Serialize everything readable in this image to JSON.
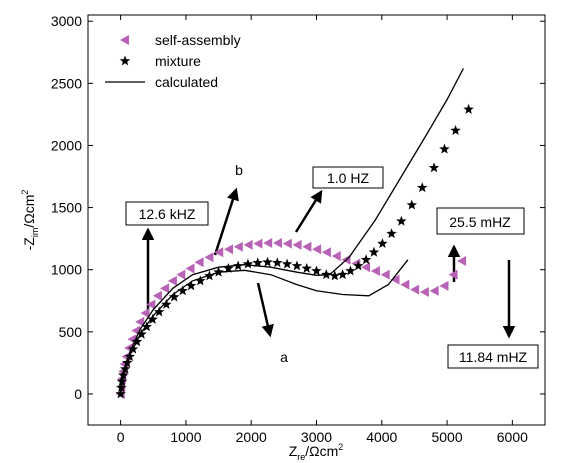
{
  "chart_data": {
    "type": "scatter",
    "x_label": {
      "main": "Z",
      "sub": "re",
      "unit": "/Ωcm",
      "sup": "2"
    },
    "y_label": {
      "main": "-Z",
      "sub": "im",
      "unit": "/Ωcm",
      "sup": "2"
    },
    "xlim": [
      -500,
      6500
    ],
    "ylim": [
      -250,
      3050
    ],
    "xticks": [
      0,
      1000,
      2000,
      3000,
      4000,
      5000,
      6000
    ],
    "yticks": [
      0,
      500,
      1000,
      1500,
      2000,
      2500,
      3000
    ],
    "legend": "upper left",
    "series": [
      {
        "name": "self-assembly",
        "color": "#b862b6",
        "marker": "triangle-left",
        "x": [
          0,
          10,
          20,
          40,
          60,
          90,
          130,
          180,
          240,
          300,
          380,
          470,
          570,
          680,
          800,
          930,
          1070,
          1210,
          1360,
          1510,
          1660,
          1810,
          1960,
          2110,
          2260,
          2410,
          2560,
          2710,
          2860,
          3010,
          3160,
          3310,
          3460,
          3610,
          3760,
          3910,
          4060,
          4210,
          4360,
          4510,
          4660,
          4810,
          4960,
          5100,
          5230
        ],
        "values": [
          0,
          60,
          120,
          180,
          240,
          300,
          370,
          440,
          510,
          580,
          650,
          720,
          790,
          850,
          910,
          960,
          1010,
          1060,
          1100,
          1140,
          1165,
          1185,
          1200,
          1210,
          1215,
          1215,
          1210,
          1200,
          1185,
          1165,
          1140,
          1110,
          1080,
          1050,
          1020,
          990,
          960,
          920,
          880,
          840,
          820,
          830,
          870,
          960,
          1070
        ]
      },
      {
        "name": "mixture",
        "color": "#000000",
        "marker": "star",
        "x": [
          0,
          10,
          20,
          40,
          70,
          100,
          140,
          190,
          250,
          320,
          400,
          490,
          590,
          700,
          820,
          950,
          1080,
          1220,
          1360,
          1500,
          1650,
          1800,
          1950,
          2100,
          2250,
          2400,
          2550,
          2700,
          2850,
          3000,
          3150,
          3280,
          3400,
          3520,
          3640,
          3760,
          3880,
          4010,
          4150,
          4300,
          4460,
          4620,
          4800,
          4960,
          5130,
          5330
        ],
        "values": [
          0,
          50,
          100,
          150,
          200,
          250,
          300,
          360,
          420,
          480,
          540,
          600,
          660,
          720,
          780,
          830,
          870,
          910,
          950,
          980,
          1010,
          1030,
          1045,
          1055,
          1060,
          1055,
          1045,
          1030,
          1010,
          990,
          960,
          950,
          960,
          990,
          1030,
          1080,
          1140,
          1210,
          1290,
          1390,
          1520,
          1660,
          1820,
          1970,
          2120,
          2290
        ]
      },
      {
        "name": "calculated",
        "color": "#000000",
        "marker": "line",
        "x": [
          0,
          50,
          150,
          300,
          500,
          800,
          1100,
          1500,
          1900,
          2300,
          2700,
          3000,
          3200,
          3500,
          3900,
          4300,
          4700,
          5000,
          5250,
          null,
          0,
          50,
          150,
          300,
          500,
          800,
          1100,
          1500,
          1900,
          2300,
          2700,
          3000,
          3400,
          3800,
          4100,
          4400
        ],
        "values": [
          0,
          180,
          350,
          520,
          680,
          850,
          960,
          1020,
          1040,
          1020,
          980,
          955,
          960,
          1100,
          1400,
          1750,
          2100,
          2370,
          2620,
          null,
          0,
          160,
          320,
          480,
          630,
          800,
          910,
          980,
          995,
          960,
          880,
          830,
          800,
          790,
          880,
          1080
        ]
      }
    ],
    "annotations": [
      "12.6 kHZ",
      "b",
      "1.0 HZ",
      "25.5 mHZ",
      "11.84 mHZ",
      "a"
    ]
  }
}
